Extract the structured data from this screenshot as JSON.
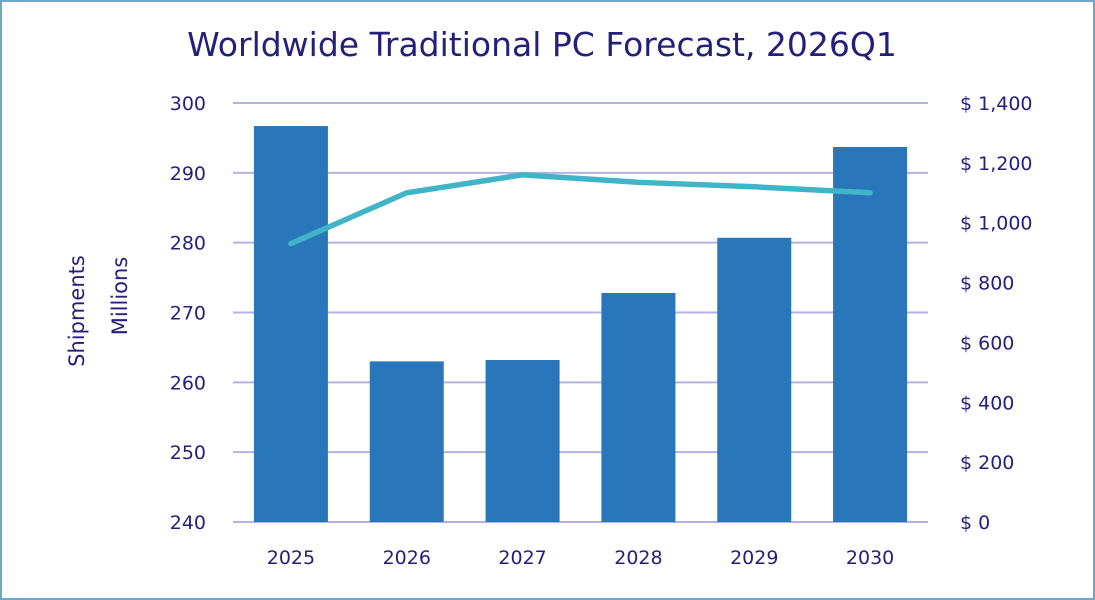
{
  "chart_data": {
    "type": "bar",
    "title": "Worldwide Traditional PC Forecast, 2026Q1",
    "ylabel_line1": "Shipments",
    "ylabel_line2": "Millions",
    "categories": [
      "2025",
      "2026",
      "2027",
      "2028",
      "2029",
      "2030"
    ],
    "bar_series": {
      "values": [
        296.7,
        263.0,
        263.2,
        272.8,
        280.7,
        293.7
      ],
      "axis": "left",
      "color": "#2a76bb"
    },
    "line_series": {
      "values": [
        930,
        1100,
        1160,
        1135,
        1120,
        1100
      ],
      "axis": "right",
      "color": "#42b4c8"
    },
    "ylim_left": [
      240,
      300
    ],
    "yticks_left": [
      "240",
      "250",
      "260",
      "270",
      "280",
      "290",
      "300"
    ],
    "ylim_right": [
      0,
      1400
    ],
    "yticks_right": [
      "$ 0",
      "$ 200",
      "$ 400",
      "$ 600",
      "$ 800",
      "$ 1,000",
      "$ 1,200",
      "$ 1,400"
    ],
    "grid": true,
    "gridline_color": "#b4b2e0",
    "text_color": "#241f7a"
  }
}
